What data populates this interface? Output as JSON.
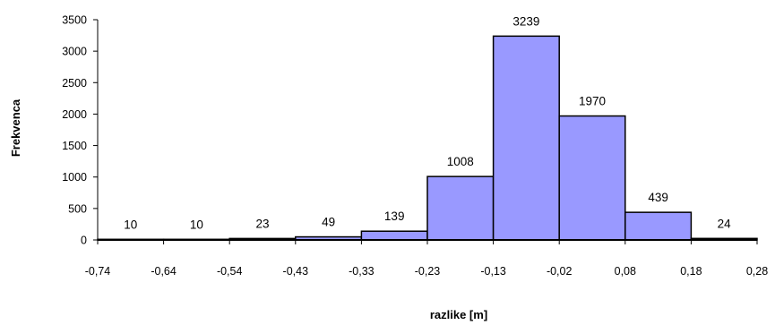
{
  "chart_data": {
    "type": "bar",
    "title": "",
    "xlabel": "razlike [m]",
    "ylabel": "Frekvenca",
    "x_ticks": [
      "-0,74",
      "-0,64",
      "-0,54",
      "-0,43",
      "-0,33",
      "-0,23",
      "-0,13",
      "-0,02",
      "0,08",
      "0,18",
      "0,28"
    ],
    "values": [
      10,
      10,
      23,
      49,
      139,
      1008,
      3239,
      1970,
      439,
      24
    ],
    "value_labels": [
      "10",
      "10",
      "23",
      "49",
      "139",
      "1008",
      "3239",
      "1970",
      "439",
      "24"
    ],
    "y_ticks": [
      "0",
      "500",
      "1000",
      "1500",
      "2000",
      "2500",
      "3000",
      "3500"
    ],
    "ylim": [
      0,
      3500
    ],
    "grid": false,
    "legend": "none",
    "bar_color": "#9999ff",
    "bar_edge_color": "#000000"
  }
}
